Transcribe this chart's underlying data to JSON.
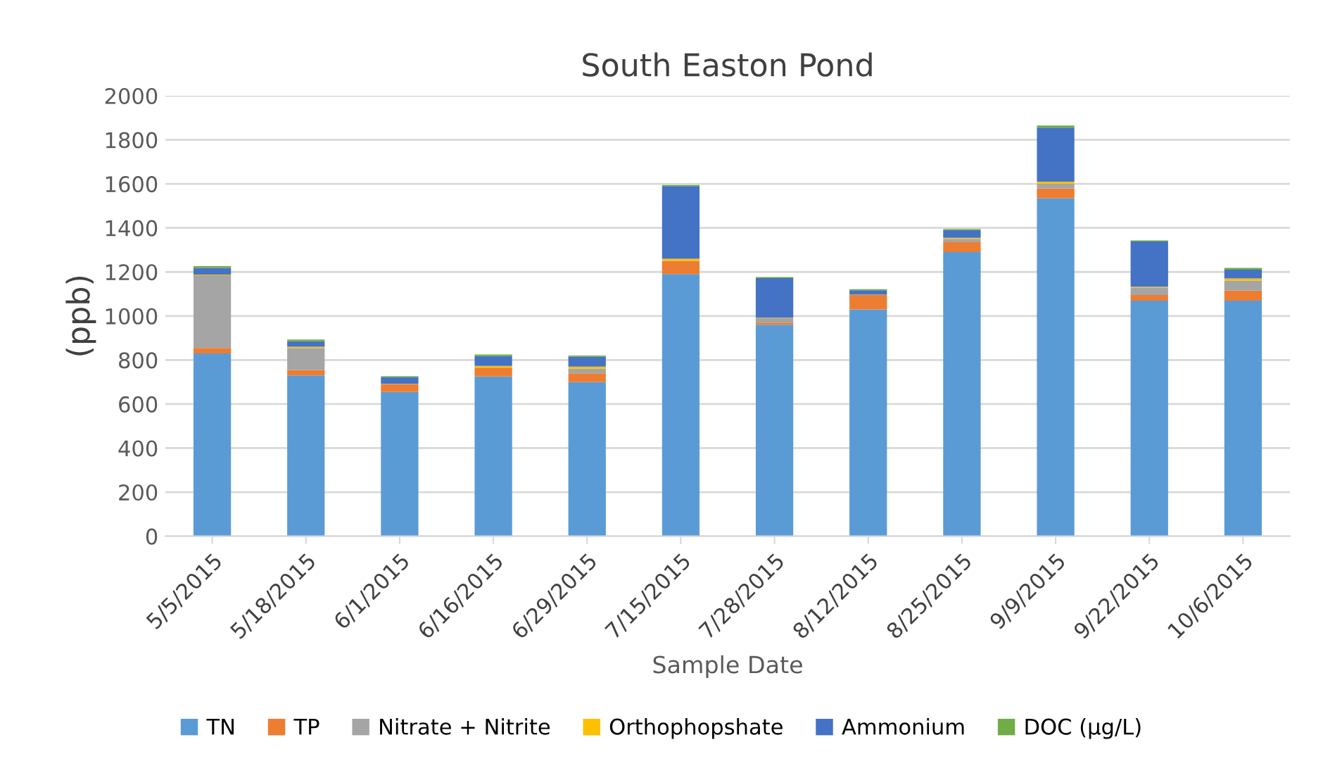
{
  "chart_data": {
    "type": "bar",
    "title": "South Easton Pond",
    "xlabel": "Sample Date",
    "ylabel": "(ppb)",
    "stacked": true,
    "grid": "y",
    "legend": "bottom",
    "categories": [
      "5/5/2015",
      "5/18/2015",
      "6/1/2015",
      "6/16/2015",
      "6/29/2015",
      "7/15/2015",
      "7/28/2015",
      "8/12/2015",
      "8/25/2015",
      "9/9/2015",
      "9/22/2015",
      "10/6/2015"
    ],
    "ylim": [
      0,
      2000
    ],
    "yticks": [
      0,
      200,
      400,
      600,
      800,
      1000,
      1200,
      1400,
      1600,
      1800,
      2000
    ],
    "series": [
      {
        "name": "TN",
        "color": "#5b9bd5",
        "values": [
          830,
          730,
          655,
          725,
          700,
          1190,
          960,
          1030,
          1290,
          1535,
          1070,
          1070
        ]
      },
      {
        "name": "TP",
        "color": "#ed7d31",
        "values": [
          25,
          25,
          35,
          40,
          40,
          60,
          10,
          65,
          45,
          45,
          25,
          45
        ]
      },
      {
        "name": "Nitrate + Nitrite",
        "color": "#a5a5a5",
        "values": [
          330,
          100,
          null,
          null,
          20,
          null,
          20,
          null,
          15,
          20,
          35,
          45
        ]
      },
      {
        "name": "Orthophopshate",
        "color": "#ffc000",
        "values": [
          3,
          5,
          2,
          8,
          10,
          10,
          2,
          2,
          5,
          10,
          3,
          10
        ]
      },
      {
        "name": "Ammonium",
        "color": "#4472c4",
        "values": [
          30,
          25,
          30,
          45,
          45,
          330,
          180,
          20,
          35,
          245,
          205,
          40
        ]
      },
      {
        "name": "DOC (µg/L)",
        "color": "#70ad47",
        "values": [
          8,
          8,
          5,
          7,
          5,
          5,
          5,
          5,
          5,
          10,
          5,
          8
        ]
      }
    ]
  }
}
